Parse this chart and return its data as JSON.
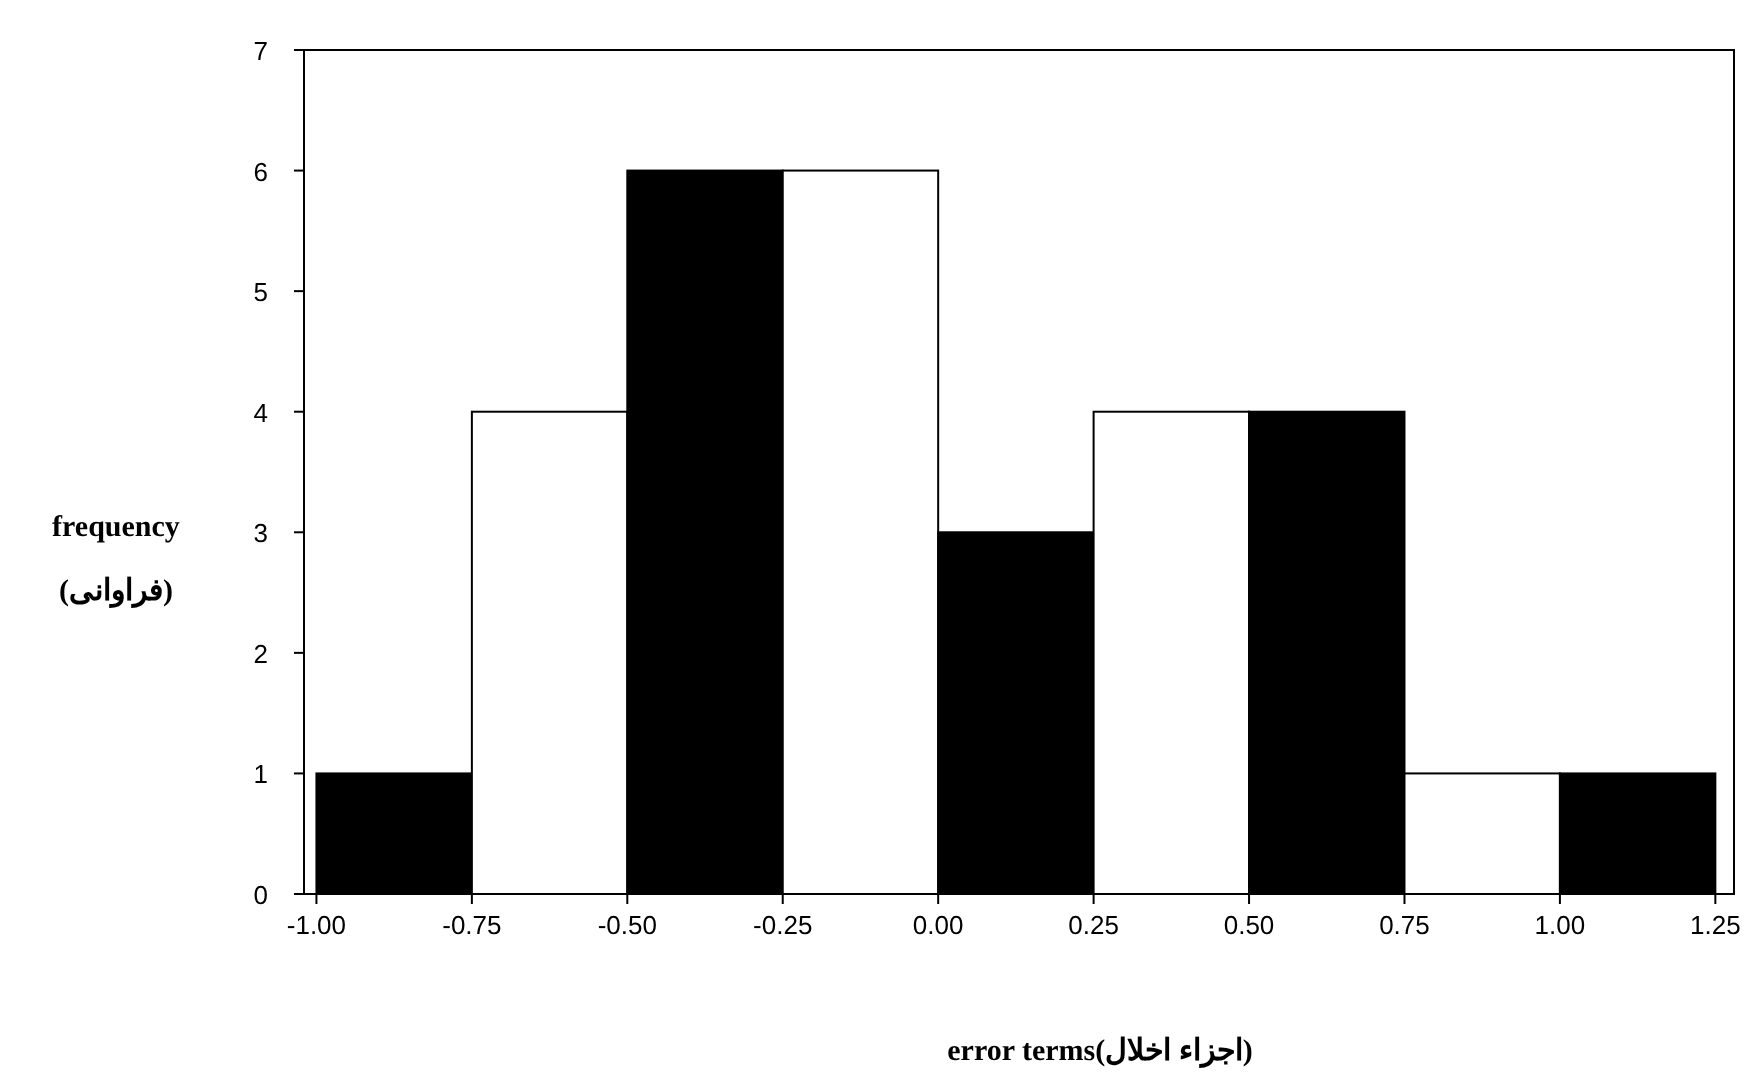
{
  "chart_data": {
    "type": "histogram",
    "bins": [
      -1.0,
      -0.75,
      -0.5,
      -0.25,
      0.0,
      0.25,
      0.5,
      0.75,
      1.0,
      1.25
    ],
    "values": [
      1,
      4,
      6,
      6,
      3,
      4,
      4,
      1,
      1
    ],
    "colors": [
      "#000000",
      "#ffffff",
      "#000000",
      "#ffffff",
      "#000000",
      "#ffffff",
      "#000000",
      "#ffffff",
      "#000000"
    ],
    "xlim": [
      -1.02,
      1.28
    ],
    "xticks": [
      {
        "value": -1.0,
        "label": "-1.00"
      },
      {
        "value": -0.75,
        "label": "-0.75"
      },
      {
        "value": -0.5,
        "label": "-0.50"
      },
      {
        "value": -0.25,
        "label": "-0.25"
      },
      {
        "value": 0.0,
        "label": "0.00"
      },
      {
        "value": 0.25,
        "label": "0.25"
      },
      {
        "value": 0.5,
        "label": "0.50"
      },
      {
        "value": 0.75,
        "label": "0.75"
      },
      {
        "value": 1.0,
        "label": "1.00"
      },
      {
        "value": 1.25,
        "label": "1.25"
      }
    ],
    "ylim": [
      0,
      7
    ],
    "yticks": [
      0,
      1,
      2,
      3,
      4,
      5,
      6,
      7
    ],
    "xlabel": "error terms(اجزاء اخلال)",
    "ylabel": "frequency\n(فراوانی)"
  }
}
